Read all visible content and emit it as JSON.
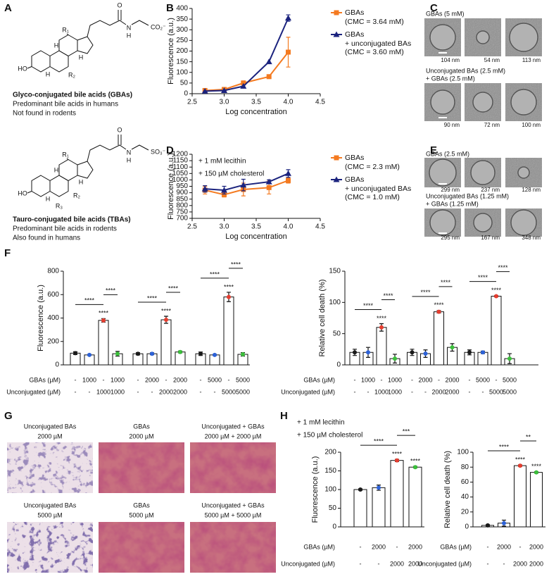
{
  "panel_labels": [
    "A",
    "B",
    "C",
    "D",
    "E",
    "F",
    "G",
    "H"
  ],
  "panel_a": {
    "structures": [
      {
        "atoms": [
          "R₁",
          "H",
          "H",
          "HO",
          "H",
          "R₂",
          "O",
          "N",
          "H"
        ],
        "tail": "CO₂⁻",
        "tail_color": "#e8362a",
        "name": "Glyco-conjugated bile acids (GBAs)",
        "notes": [
          "Predominant bile acids in humans",
          "Not found in rodents"
        ]
      },
      {
        "atoms": [
          "R₁",
          "H",
          "H",
          "HO",
          "H",
          "R₂",
          "R₃",
          "O",
          "N",
          "H"
        ],
        "tail": "SO₃⁻",
        "tail_color": "#2458e0",
        "name": "Tauro-conjugated bile acids (TBAs)",
        "notes": [
          "Predominant bile acids in rodents",
          "Also found in humans"
        ]
      }
    ]
  },
  "panel_c": {
    "rows": [
      {
        "caption": [
          "GBAs (5 mM)"
        ],
        "sizes": [
          "104 nm",
          "54 nm",
          "113 nm"
        ]
      },
      {
        "caption": [
          "Unconjugated BAs (2.5 mM)",
          "+ GBAs (2.5 mM)"
        ],
        "sizes": [
          "90 nm",
          "72 nm",
          "100 nm"
        ]
      }
    ]
  },
  "panel_e": {
    "rows": [
      {
        "caption": [
          "GBAs (2.5 mM)"
        ],
        "sizes": [
          "299 nm",
          "237 nm",
          "128 nm"
        ]
      },
      {
        "caption": [
          "Unconjugated BAs (1.25 mM)",
          "+ GBAs (1.25 mM)"
        ],
        "sizes": [
          "295 nm",
          "167 nm",
          "348 nm"
        ]
      }
    ]
  },
  "panel_g": {
    "images": [
      {
        "caption": [
          "Unconjugated BAs",
          "2000 µM"
        ]
      },
      {
        "caption": [
          "GBAs",
          "2000 µM"
        ]
      },
      {
        "caption": [
          "Unconjugated + GBAs",
          "2000 µM + 2000 µM"
        ]
      },
      {
        "caption": [
          "Unconjugated BAs",
          "5000 µM"
        ]
      },
      {
        "caption": [
          "GBAs",
          "5000 µM"
        ]
      },
      {
        "caption": [
          "Unconjugated + GBAs",
          "5000 µM + 5000 µM"
        ]
      }
    ]
  },
  "chart_data": [
    {
      "type": "line",
      "xlabel": "Log concentration",
      "ylabel": "Fluorescence (a.u.)",
      "x": [
        2.7,
        3.0,
        3.3,
        3.7,
        4.0
      ],
      "xlim": [
        2.5,
        4.5
      ],
      "xticks": [
        2.5,
        {
          "value": 3,
          "label": "3.0"
        },
        3.5,
        {
          "value": 4,
          "label": "4.0"
        },
        4.5
      ],
      "ylim": [
        0,
        400
      ],
      "yticks": [
        0,
        50,
        100,
        150,
        200,
        250,
        300,
        350,
        400
      ],
      "series": [
        {
          "name": "GBAs",
          "note": "(CMC = 3.64 mM)",
          "color": "#f47a20",
          "marker": "square",
          "values": [
            15,
            20,
            50,
            80,
            195
          ],
          "errors": [
            null,
            null,
            10,
            null,
            70
          ]
        },
        {
          "name": "GBAs\n+ unconjugated BAs",
          "note": "(CMC = 3.60 mM)",
          "color": "#1b237e",
          "marker": "triangle",
          "values": [
            12,
            15,
            35,
            150,
            355
          ],
          "errors": [
            null,
            null,
            null,
            null,
            15
          ]
        }
      ]
    },
    {
      "type": "line",
      "xlabel": "Log concentration",
      "ylabel": "Fluorescence (a.u.)",
      "annotations": [
        "+ 1 mM lecithin",
        "+ 150 µM cholesterol"
      ],
      "x": [
        2.7,
        3.0,
        3.3,
        3.7,
        4.0
      ],
      "xlim": [
        2.5,
        4.5
      ],
      "xticks": [
        2.5,
        {
          "value": 3,
          "label": "3.0"
        },
        3.5,
        {
          "value": 4,
          "label": "4.0"
        },
        4.5
      ],
      "ylim": [
        700,
        1200
      ],
      "yticks": [
        700,
        750,
        800,
        850,
        900,
        950,
        1000,
        1050,
        1100,
        1150,
        1200
      ],
      "series": [
        {
          "name": "GBAs",
          "note": "(CMC = 2.3 mM)",
          "color": "#f47a20",
          "marker": "square",
          "values": [
            920,
            885,
            925,
            940,
            995
          ],
          "errors": [
            30,
            18,
            50,
            50,
            20
          ]
        },
        {
          "name": "GBAs\n+ unconjugated BAs",
          "note": "(CMC = 1.0 mM)",
          "color": "#1b237e",
          "marker": "triangle",
          "values": [
            930,
            920,
            960,
            985,
            1050
          ],
          "errors": [
            25,
            30,
            45,
            15,
            30
          ]
        }
      ]
    },
    {
      "type": "bar",
      "ylabel": "Fluorescence (a.u.)",
      "ylim": [
        0,
        800
      ],
      "yticks": [
        0,
        200,
        400,
        600,
        800
      ],
      "row_labels": [
        "GBAs (µM)",
        "Unconjugated (µM)"
      ],
      "dot_colors": [
        "#1a1a1a",
        "#2d62d8",
        "#e53d2f",
        "#3bbf3b"
      ],
      "groups": [
        {
          "gbas": [
            "-",
            "1000",
            "-",
            "1000"
          ],
          "unconjugated": [
            "-",
            "-",
            "1000",
            "1000"
          ],
          "values": [
            100,
            85,
            380,
            95
          ],
          "errors": [
            12,
            4,
            15,
            20
          ],
          "stars": [
            null,
            null,
            "****",
            null
          ],
          "brackets": [
            {
              "bars": [
                0,
                2
              ],
              "label": "****"
            },
            {
              "bars": [
                2,
                3
              ],
              "label": "****"
            }
          ]
        },
        {
          "gbas": [
            "-",
            "2000",
            "-",
            "2000"
          ],
          "unconjugated": [
            "-",
            "-",
            "2000",
            "2000"
          ],
          "values": [
            95,
            95,
            385,
            110
          ],
          "errors": [
            10,
            8,
            30,
            8
          ],
          "stars": [
            null,
            null,
            "****",
            null
          ],
          "brackets": [
            {
              "bars": [
                0,
                2
              ],
              "label": "****"
            },
            {
              "bars": [
                2,
                3
              ],
              "label": "****"
            }
          ]
        },
        {
          "gbas": [
            "-",
            "5000",
            "-",
            "5000"
          ],
          "unconjugated": [
            "-",
            "-",
            "5000",
            "5000"
          ],
          "values": [
            95,
            85,
            580,
            90
          ],
          "errors": [
            15,
            5,
            40,
            15
          ],
          "stars": [
            null,
            null,
            "****",
            null
          ],
          "brackets": [
            {
              "bars": [
                0,
                2
              ],
              "label": "****"
            },
            {
              "bars": [
                2,
                3
              ],
              "label": "****"
            }
          ]
        }
      ]
    },
    {
      "type": "bar",
      "ylabel": "Relative cell death (%)",
      "ylim": [
        0,
        150
      ],
      "yticks": [
        0,
        50,
        100,
        150
      ],
      "row_labels": [
        "GBAs (µM)",
        "Unconjugated (µM)"
      ],
      "dot_colors": [
        "#1a1a1a",
        "#2d62d8",
        "#e53d2f",
        "#3bbf3b"
      ],
      "groups": [
        {
          "gbas": [
            "-",
            "1000",
            "-",
            "1000"
          ],
          "unconjugated": [
            "-",
            "-",
            "1000",
            "1000"
          ],
          "values": [
            20,
            20,
            60,
            10
          ],
          "errors": [
            5,
            8,
            6,
            7
          ],
          "stars": [
            null,
            null,
            "****",
            null
          ],
          "brackets": [
            {
              "bars": [
                0,
                2
              ],
              "label": "****"
            },
            {
              "bars": [
                2,
                3
              ],
              "label": "****"
            }
          ]
        },
        {
          "gbas": [
            "-",
            "2000",
            "-",
            "2000"
          ],
          "unconjugated": [
            "-",
            "-",
            "2000",
            "2000"
          ],
          "values": [
            20,
            18,
            85,
            28
          ],
          "errors": [
            5,
            6,
            2,
            6
          ],
          "stars": [
            null,
            null,
            "****",
            null
          ],
          "brackets": [
            {
              "bars": [
                0,
                2
              ],
              "label": "****"
            },
            {
              "bars": [
                2,
                3
              ],
              "label": "****"
            }
          ]
        },
        {
          "gbas": [
            "-",
            "5000",
            "-",
            "5000"
          ],
          "unconjugated": [
            "-",
            "-",
            "5000",
            "5000"
          ],
          "values": [
            20,
            20,
            110,
            10
          ],
          "errors": [
            4,
            2,
            1,
            8
          ],
          "stars": [
            null,
            null,
            "****",
            null
          ],
          "brackets": [
            {
              "bars": [
                0,
                2
              ],
              "label": "****"
            },
            {
              "bars": [
                2,
                3
              ],
              "label": "****"
            }
          ]
        }
      ]
    },
    {
      "type": "bar",
      "ylabel": "Fluorescence (a.u.)",
      "annotations": [
        "+ 1 mM lecithin",
        "+ 150 µM cholesterol"
      ],
      "ylim": [
        0,
        200
      ],
      "yticks": [
        0,
        50,
        100,
        150,
        200
      ],
      "row_labels": [
        "GBAs (µM)",
        "Unconjugated (µM)"
      ],
      "dot_colors": [
        "#1a1a1a",
        "#2d62d8",
        "#e53d2f",
        "#3bbf3b"
      ],
      "groups": [
        {
          "gbas": [
            "-",
            "2000",
            "-",
            "2000"
          ],
          "unconjugated": [
            "-",
            "-",
            "2000",
            "2000"
          ],
          "values": [
            100,
            105,
            178,
            160
          ],
          "errors": [
            2,
            7,
            3,
            2
          ],
          "stars": [
            null,
            null,
            "****",
            "****"
          ],
          "brackets": [
            {
              "bars": [
                0,
                2
              ],
              "label": "****"
            },
            {
              "bars": [
                2,
                3
              ],
              "label": "***"
            }
          ]
        }
      ]
    },
    {
      "type": "bar",
      "ylabel": "Relative cell death (%)",
      "ylim": [
        0,
        100
      ],
      "yticks": [
        0,
        20,
        40,
        60,
        80,
        100
      ],
      "row_labels": [
        "GBAs (µM)",
        "Unconjugated (µM)"
      ],
      "dot_colors": [
        "#1a1a1a",
        "#2d62d8",
        "#e53d2f",
        "#3bbf3b"
      ],
      "groups": [
        {
          "gbas": [
            "-",
            "2000",
            "-",
            "2000"
          ],
          "unconjugated": [
            "-",
            "-",
            "2000",
            "2000"
          ],
          "values": [
            2,
            5,
            82,
            73
          ],
          "errors": [
            1,
            4,
            1,
            1
          ],
          "stars": [
            null,
            null,
            "****",
            "****"
          ],
          "brackets": [
            {
              "bars": [
                0,
                2
              ],
              "label": "****"
            },
            {
              "bars": [
                2,
                3
              ],
              "label": "**"
            }
          ]
        }
      ]
    }
  ]
}
